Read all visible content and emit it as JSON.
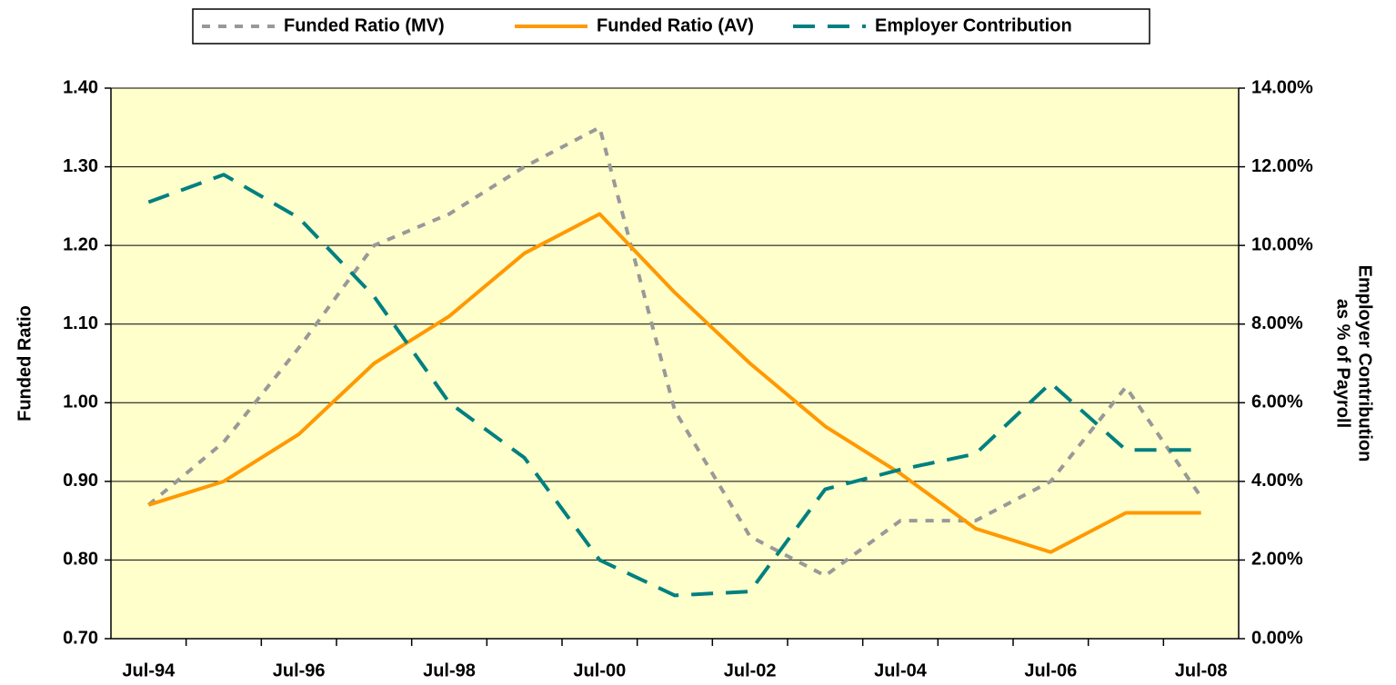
{
  "chart_data": {
    "type": "line",
    "categories": [
      "Jul-94",
      null,
      "Jul-96",
      null,
      "Jul-98",
      null,
      "Jul-00",
      null,
      "Jul-02",
      null,
      "Jul-04",
      null,
      "Jul-06",
      null,
      "Jul-08"
    ],
    "series": [
      {
        "name": "Funded Ratio (MV)",
        "color": "#999999",
        "dash": "9 9",
        "values": [
          0.87,
          0.95,
          1.07,
          1.2,
          1.24,
          1.3,
          1.35,
          0.99,
          0.83,
          0.78,
          0.85,
          0.85,
          0.9,
          1.02,
          0.88
        ]
      },
      {
        "name": "Funded Ratio (AV)",
        "color": "#ff9900",
        "values": [
          0.87,
          0.9,
          0.96,
          1.05,
          1.11,
          1.19,
          1.24,
          1.14,
          1.05,
          0.97,
          0.91,
          0.84,
          0.81,
          0.86,
          0.86
        ]
      },
      {
        "name": "Employer Contribution",
        "color": "#008080",
        "dash": "24 14",
        "axis": "y2",
        "values": [
          11.1,
          11.8,
          10.7,
          8.7,
          6.0,
          4.6,
          2.0,
          1.1,
          1.2,
          3.8,
          4.3,
          4.7,
          6.5,
          4.8,
          4.8
        ]
      }
    ],
    "ylabel": "Funded Ratio",
    "y2label": [
      "Employer Contribution",
      "as % of Payroll"
    ],
    "ylim": [
      0.7,
      1.4
    ],
    "yticks": [
      {
        "value": 0.7,
        "label": "0.70"
      },
      {
        "value": 0.8,
        "label": "0.80"
      },
      {
        "value": 0.9,
        "label": "0.90"
      },
      {
        "value": 1.0,
        "label": "1.00"
      },
      {
        "value": 1.1,
        "label": "1.10"
      },
      {
        "value": 1.2,
        "label": "1.20"
      },
      {
        "value": 1.3,
        "label": "1.30"
      },
      {
        "value": 1.4,
        "label": "1.40"
      }
    ],
    "y2lim": [
      0,
      14
    ],
    "y2ticks": [
      {
        "value": 0,
        "label": "0.00%"
      },
      {
        "value": 2,
        "label": "2.00%"
      },
      {
        "value": 4,
        "label": "4.00%"
      },
      {
        "value": 6,
        "label": "6.00%"
      },
      {
        "value": 8,
        "label": "8.00%"
      },
      {
        "value": 10,
        "label": "10.00%"
      },
      {
        "value": 12,
        "label": "12.00%"
      },
      {
        "value": 14,
        "label": "14.00%"
      }
    ],
    "grid": true,
    "legend": "top",
    "background": "#ffffcc"
  }
}
